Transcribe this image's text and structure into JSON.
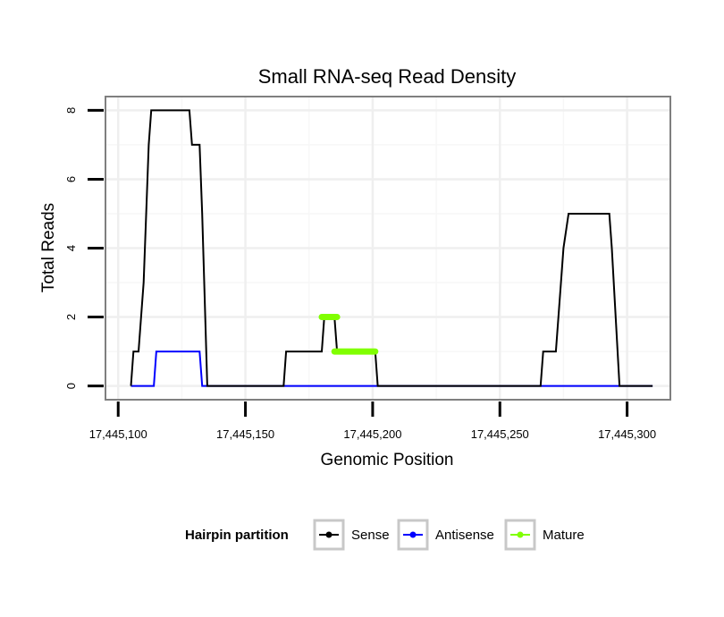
{
  "chart_data": {
    "type": "line",
    "title": "Small RNA-seq Read Density",
    "xlabel": "Genomic Position",
    "ylabel": "Total Reads",
    "xlim": [
      17445095,
      17445317
    ],
    "ylim": [
      -0.4,
      8.4
    ],
    "x_ticks": [
      17445100,
      17445150,
      17445200,
      17445250,
      17445300
    ],
    "x_tick_labels": [
      "17,445,100",
      "17,445,150",
      "17,445,200",
      "17,445,250",
      "17,445,300"
    ],
    "y_ticks": [
      0,
      2,
      4,
      6,
      8
    ],
    "y_tick_labels": [
      "0",
      "2",
      "4",
      "6",
      "8"
    ],
    "grid": true,
    "legend": {
      "title": "Hairpin partition",
      "position": "bottom",
      "entries": [
        "Sense",
        "Antisense",
        "Mature"
      ]
    },
    "series": [
      {
        "name": "Sense",
        "color": "#000000",
        "x": [
          17445105,
          17445106,
          17445107,
          17445108,
          17445110,
          17445112,
          17445113,
          17445117,
          17445128,
          17445129,
          17445132,
          17445133,
          17445135,
          17445165,
          17445166,
          17445180,
          17445181,
          17445185,
          17445186,
          17445201,
          17445202,
          17445266,
          17445267,
          17445272,
          17445274,
          17445275,
          17445277,
          17445287,
          17445292,
          17445293,
          17445294,
          17445297,
          17445310
        ],
        "values": [
          0,
          1,
          1,
          1,
          3,
          7,
          8,
          8,
          8,
          7,
          7,
          5,
          0,
          0,
          1,
          1,
          2,
          2,
          1,
          1,
          0,
          0,
          1,
          1,
          3,
          4,
          5,
          5,
          5,
          5,
          4,
          0,
          0
        ]
      },
      {
        "name": "Antisense",
        "color": "#0000ff",
        "x": [
          17445105,
          17445114,
          17445115,
          17445132,
          17445133,
          17445310
        ],
        "values": [
          0,
          0,
          1,
          1,
          0,
          0
        ]
      },
      {
        "name": "Mature",
        "color": "#80ff00",
        "segments": [
          {
            "x": [
              17445180,
              17445186
            ],
            "values": [
              2,
              2
            ]
          },
          {
            "x": [
              17445185,
              17445201
            ],
            "values": [
              1,
              1
            ]
          }
        ]
      }
    ]
  }
}
